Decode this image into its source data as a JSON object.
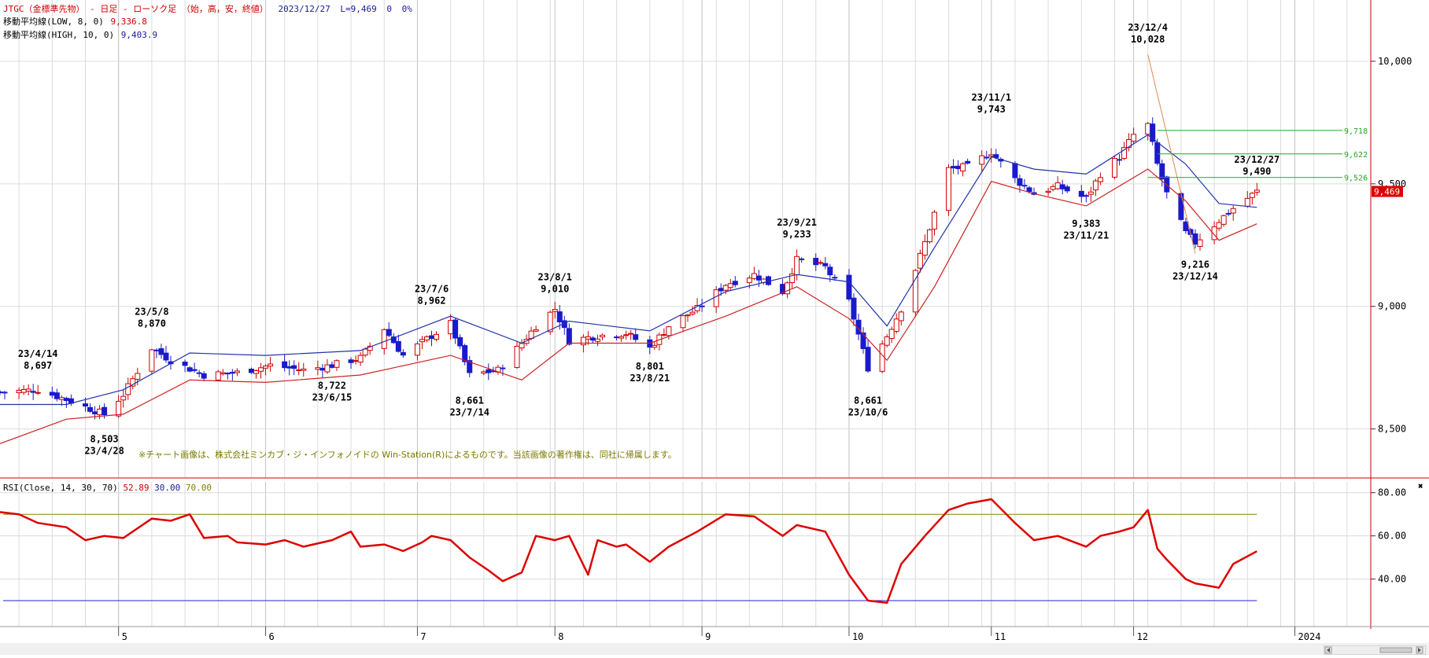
{
  "header": {
    "line1": {
      "title": "JTGC（金標準先物） - 日足 - ローソク足 （始，高，安，終値）",
      "date": "2023/12/27",
      "last": "L=9,469",
      "change": "0",
      "pct": "0%"
    },
    "line2": {
      "label": "移動平均線(LOW, 8, 0)",
      "value": "9,336.8"
    },
    "line3": {
      "label": "移動平均線(HIGH, 10, 0)",
      "value": "9,403.9"
    }
  },
  "copyright": "※チャート画像は、株式会社ミンカブ・ジ・インフォノイドの Win-Station(R)によるものです。当該画像の著作権は、同社に帰属します。",
  "rsi_header": {
    "label": "RSI(Close, 14, 30, 70)",
    "value": "52.89",
    "low": "30.00",
    "high": "70.00"
  },
  "colors": {
    "up": "#cc0000",
    "down": "#1a1acc",
    "ma_low": "#cc2222",
    "ma_high": "#2233aa",
    "rsi": "#dd0000",
    "grid": "#dcdcdc",
    "hline": "#22aa22",
    "last_price_bg": "#dd0000"
  },
  "chart_data": [
    {
      "type": "candlestick",
      "title": "JTGC（金標準先物） - 日足 - ローソク足 （始，高，安，終値）",
      "x_range": [
        "2023-04-06",
        "2024-01-20"
      ],
      "ylim": [
        8300,
        10250
      ],
      "y_ticks": [
        8500,
        9000,
        9500,
        10000
      ],
      "y_tick_labels": [
        "8,500",
        "9,000",
        "9,500",
        "10,000"
      ],
      "x_ticks": [
        {
          "date": "2023-05-01",
          "label": "5"
        },
        {
          "date": "2023-06-01",
          "label": "6"
        },
        {
          "date": "2023-07-03",
          "label": "7"
        },
        {
          "date": "2023-08-01",
          "label": "8"
        },
        {
          "date": "2023-09-01",
          "label": "9"
        },
        {
          "date": "2023-10-02",
          "label": "10"
        },
        {
          "date": "2023-11-01",
          "label": "11"
        },
        {
          "date": "2023-12-01",
          "label": "12"
        },
        {
          "date": "2024-01-04",
          "label": "2024"
        }
      ],
      "grid": true,
      "close_path": [
        [
          "2023-04-06",
          8650
        ],
        [
          "2023-04-14",
          8660
        ],
        [
          "2023-04-20",
          8620
        ],
        [
          "2023-04-28",
          8560
        ],
        [
          "2023-05-02",
          8640
        ],
        [
          "2023-05-08",
          8830
        ],
        [
          "2023-05-12",
          8780
        ],
        [
          "2023-05-19",
          8720
        ],
        [
          "2023-05-26",
          8730
        ],
        [
          "2023-06-02",
          8760
        ],
        [
          "2023-06-09",
          8740
        ],
        [
          "2023-06-15",
          8760
        ],
        [
          "2023-06-21",
          8790
        ],
        [
          "2023-06-26",
          8910
        ],
        [
          "2023-06-30",
          8800
        ],
        [
          "2023-07-06",
          8880
        ],
        [
          "2023-07-10",
          8930
        ],
        [
          "2023-07-14",
          8720
        ],
        [
          "2023-07-20",
          8740
        ],
        [
          "2023-07-25",
          8850
        ],
        [
          "2023-07-28",
          8920
        ],
        [
          "2023-08-01",
          8990
        ],
        [
          "2023-08-04",
          8860
        ],
        [
          "2023-08-10",
          8880
        ],
        [
          "2023-08-16",
          8890
        ],
        [
          "2023-08-21",
          8830
        ],
        [
          "2023-08-25",
          8920
        ],
        [
          "2023-08-31",
          8990
        ],
        [
          "2023-09-06",
          9090
        ],
        [
          "2023-09-12",
          9130
        ],
        [
          "2023-09-18",
          9060
        ],
        [
          "2023-09-21",
          9190
        ],
        [
          "2023-09-27",
          9160
        ],
        [
          "2023-10-02",
          9020
        ],
        [
          "2023-10-06",
          8750
        ],
        [
          "2023-10-10",
          8880
        ],
        [
          "2023-10-13",
          8990
        ],
        [
          "2023-10-18",
          9260
        ],
        [
          "2023-10-23",
          9560
        ],
        [
          "2023-10-27",
          9570
        ],
        [
          "2023-11-01",
          9630
        ],
        [
          "2023-11-06",
          9520
        ],
        [
          "2023-11-10",
          9460
        ],
        [
          "2023-11-15",
          9490
        ],
        [
          "2023-11-21",
          9440
        ],
        [
          "2023-11-24",
          9540
        ],
        [
          "2023-11-28",
          9610
        ],
        [
          "2023-12-01",
          9700
        ],
        [
          "2023-12-04",
          9740
        ],
        [
          "2023-12-06",
          9580
        ],
        [
          "2023-12-08",
          9460
        ],
        [
          "2023-12-12",
          9300
        ],
        [
          "2023-12-14",
          9260
        ],
        [
          "2023-12-19",
          9350
        ],
        [
          "2023-12-22",
          9400
        ],
        [
          "2023-12-27",
          9469
        ]
      ],
      "series": [
        {
          "name": "移動平均線(LOW, 8, 0)",
          "values": [
            [
              "2023-04-06",
              8440
            ],
            [
              "2023-04-20",
              8540
            ],
            [
              "2023-05-02",
              8560
            ],
            [
              "2023-05-16",
              8700
            ],
            [
              "2023-06-01",
              8690
            ],
            [
              "2023-06-21",
              8720
            ],
            [
              "2023-07-10",
              8800
            ],
            [
              "2023-07-25",
              8700
            ],
            [
              "2023-08-04",
              8850
            ],
            [
              "2023-08-21",
              8850
            ],
            [
              "2023-09-06",
              8960
            ],
            [
              "2023-09-21",
              9080
            ],
            [
              "2023-10-02",
              8950
            ],
            [
              "2023-10-10",
              8780
            ],
            [
              "2023-10-20",
              9080
            ],
            [
              "2023-11-01",
              9510
            ],
            [
              "2023-11-10",
              9460
            ],
            [
              "2023-11-21",
              9410
            ],
            [
              "2023-12-04",
              9560
            ],
            [
              "2023-12-12",
              9430
            ],
            [
              "2023-12-19",
              9270
            ],
            [
              "2023-12-27",
              9336.8
            ]
          ]
        },
        {
          "name": "移動平均線(HIGH, 10, 0)",
          "values": [
            [
              "2023-04-06",
              8600
            ],
            [
              "2023-04-20",
              8600
            ],
            [
              "2023-05-02",
              8660
            ],
            [
              "2023-05-16",
              8810
            ],
            [
              "2023-06-01",
              8800
            ],
            [
              "2023-06-21",
              8820
            ],
            [
              "2023-07-10",
              8960
            ],
            [
              "2023-07-25",
              8850
            ],
            [
              "2023-08-04",
              8940
            ],
            [
              "2023-08-21",
              8900
            ],
            [
              "2023-09-06",
              9060
            ],
            [
              "2023-09-21",
              9130
            ],
            [
              "2023-10-02",
              9100
            ],
            [
              "2023-10-10",
              8920
            ],
            [
              "2023-10-20",
              9240
            ],
            [
              "2023-11-01",
              9610
            ],
            [
              "2023-11-10",
              9560
            ],
            [
              "2023-11-21",
              9540
            ],
            [
              "2023-12-04",
              9700
            ],
            [
              "2023-12-12",
              9580
            ],
            [
              "2023-12-19",
              9420
            ],
            [
              "2023-12-27",
              9403.9
            ]
          ]
        }
      ],
      "annotations": [
        {
          "date": "2023-04-14",
          "value": 8697,
          "text": [
            "23/4/14",
            "8,697"
          ],
          "pos": "above"
        },
        {
          "date": "2023-04-28",
          "value": 8503,
          "text": [
            "8,503",
            "23/4/28"
          ],
          "pos": "below"
        },
        {
          "date": "2023-05-08",
          "value": 8870,
          "text": [
            "23/5/8",
            "8,870"
          ],
          "pos": "above"
        },
        {
          "date": "2023-06-15",
          "value": 8722,
          "text": [
            "8,722",
            "23/6/15"
          ],
          "pos": "below"
        },
        {
          "date": "2023-07-06",
          "value": 8962,
          "text": [
            "23/7/6",
            "8,962"
          ],
          "pos": "above"
        },
        {
          "date": "2023-07-14",
          "value": 8661,
          "text": [
            "8,661",
            "23/7/14"
          ],
          "pos": "below"
        },
        {
          "date": "2023-08-01",
          "value": 9010,
          "text": [
            "23/8/1",
            "9,010"
          ],
          "pos": "above"
        },
        {
          "date": "2023-08-21",
          "value": 8801,
          "text": [
            "8,801",
            "23/8/21"
          ],
          "pos": "below"
        },
        {
          "date": "2023-09-21",
          "value": 9233,
          "text": [
            "23/9/21",
            "9,233"
          ],
          "pos": "above"
        },
        {
          "date": "2023-10-06",
          "value": 8661,
          "text": [
            "8,661",
            "23/10/6"
          ],
          "pos": "below"
        },
        {
          "date": "2023-11-01",
          "value": 9743,
          "text": [
            "23/11/1",
            "9,743"
          ],
          "pos": "above"
        },
        {
          "date": "2023-11-21",
          "value": 9383,
          "text": [
            "9,383",
            "23/11/21"
          ],
          "pos": "below"
        },
        {
          "date": "2023-12-04",
          "value": 10028,
          "text": [
            "23/12/4",
            "10,028"
          ],
          "pos": "above"
        },
        {
          "date": "2023-12-14",
          "value": 9216,
          "text": [
            "9,216",
            "23/12/14"
          ],
          "pos": "below"
        },
        {
          "date": "2023-12-27",
          "value": 9490,
          "text": [
            "23/12/27",
            "9,490"
          ],
          "pos": "above"
        }
      ],
      "hlines": [
        {
          "value": 9718,
          "label": "9,718",
          "from": "2023-12-06"
        },
        {
          "value": 9622,
          "label": "9,622",
          "from": "2023-12-06"
        },
        {
          "value": 9526,
          "label": "9,526",
          "from": "2023-12-04"
        }
      ],
      "trendline": [
        [
          "2023-12-04",
          10028
        ],
        [
          "2023-12-14",
          9216
        ]
      ],
      "last_price": {
        "value": 9469,
        "label": "9,469"
      }
    },
    {
      "type": "line",
      "title": "RSI(Close, 14, 30, 70)",
      "ylim": [
        18,
        85
      ],
      "y_ticks": [
        40,
        60,
        80
      ],
      "y_tick_labels": [
        "40.00",
        "60.00",
        "80.00"
      ],
      "levels": [
        {
          "name": "30.00",
          "value": 30
        },
        {
          "name": "70.00",
          "value": 70
        }
      ],
      "series": [
        {
          "name": "RSI",
          "values": [
            [
              "2023-04-06",
              71
            ],
            [
              "2023-04-10",
              70
            ],
            [
              "2023-04-14",
              66
            ],
            [
              "2023-04-20",
              64
            ],
            [
              "2023-04-24",
              58
            ],
            [
              "2023-04-28",
              60
            ],
            [
              "2023-05-02",
              59
            ],
            [
              "2023-05-08",
              68
            ],
            [
              "2023-05-12",
              67
            ],
            [
              "2023-05-16",
              70
            ],
            [
              "2023-05-19",
              59
            ],
            [
              "2023-05-24",
              60
            ],
            [
              "2023-05-26",
              57
            ],
            [
              "2023-06-01",
              56
            ],
            [
              "2023-06-05",
              58
            ],
            [
              "2023-06-09",
              55
            ],
            [
              "2023-06-15",
              58
            ],
            [
              "2023-06-19",
              62
            ],
            [
              "2023-06-21",
              55
            ],
            [
              "2023-06-26",
              56
            ],
            [
              "2023-06-30",
              53
            ],
            [
              "2023-07-04",
              57
            ],
            [
              "2023-07-06",
              60
            ],
            [
              "2023-07-10",
              58
            ],
            [
              "2023-07-14",
              50
            ],
            [
              "2023-07-18",
              44
            ],
            [
              "2023-07-21",
              39
            ],
            [
              "2023-07-25",
              43
            ],
            [
              "2023-07-28",
              60
            ],
            [
              "2023-08-01",
              58
            ],
            [
              "2023-08-04",
              60
            ],
            [
              "2023-08-08",
              42
            ],
            [
              "2023-08-10",
              58
            ],
            [
              "2023-08-14",
              55
            ],
            [
              "2023-08-16",
              56
            ],
            [
              "2023-08-21",
              48
            ],
            [
              "2023-08-25",
              55
            ],
            [
              "2023-08-31",
              62
            ],
            [
              "2023-09-06",
              70
            ],
            [
              "2023-09-12",
              69
            ],
            [
              "2023-09-18",
              60
            ],
            [
              "2023-09-21",
              65
            ],
            [
              "2023-09-27",
              62
            ],
            [
              "2023-10-02",
              42
            ],
            [
              "2023-10-06",
              30
            ],
            [
              "2023-10-10",
              29
            ],
            [
              "2023-10-13",
              47
            ],
            [
              "2023-10-18",
              60
            ],
            [
              "2023-10-23",
              72
            ],
            [
              "2023-10-27",
              75
            ],
            [
              "2023-11-01",
              77
            ],
            [
              "2023-11-06",
              66
            ],
            [
              "2023-11-10",
              58
            ],
            [
              "2023-11-15",
              60
            ],
            [
              "2023-11-21",
              55
            ],
            [
              "2023-11-24",
              60
            ],
            [
              "2023-11-28",
              62
            ],
            [
              "2023-12-01",
              64
            ],
            [
              "2023-12-04",
              72
            ],
            [
              "2023-12-06",
              54
            ],
            [
              "2023-12-08",
              49
            ],
            [
              "2023-12-12",
              40
            ],
            [
              "2023-12-14",
              38
            ],
            [
              "2023-12-19",
              36
            ],
            [
              "2023-12-22",
              47
            ],
            [
              "2023-12-27",
              52.89
            ]
          ]
        }
      ]
    }
  ]
}
